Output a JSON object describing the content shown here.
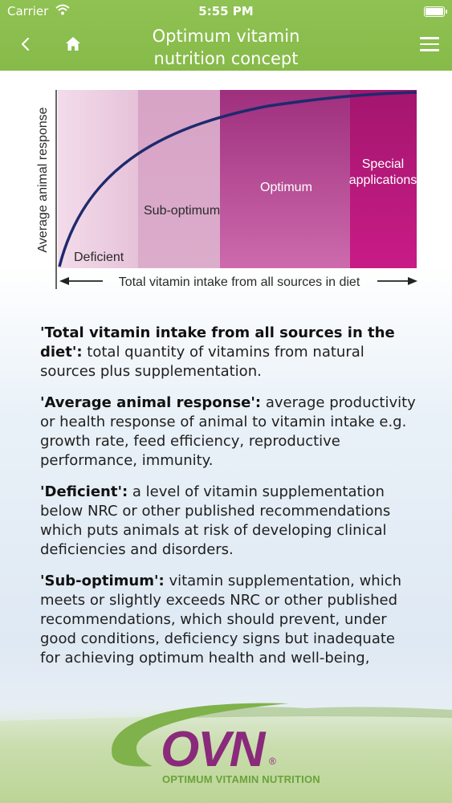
{
  "status_bar": {
    "carrier": "Carrier",
    "time": "5:55 PM"
  },
  "nav": {
    "back_icon": "chevron-left-icon",
    "home_icon": "home-icon",
    "title_line1": "Optimum vitamin",
    "title_line2": "nutrition concept",
    "menu_icon": "hamburger-menu-icon"
  },
  "colors": {
    "nav_green": "#8fc252",
    "magenta": "#c0177f",
    "curve": "#1e2a6e",
    "logo_green": "#6aa33a",
    "logo_purple": "#8a2a7a"
  },
  "chart_data": {
    "type": "area",
    "ylabel": "Average animal response",
    "xlabel": "Total vitamin intake from all sources in diet",
    "zones": [
      {
        "label": "Deficient",
        "color": "#e9c9de"
      },
      {
        "label": "Sub-optimum",
        "color": "#d9a6c8"
      },
      {
        "label": "Optimum",
        "color": "#b8509a"
      },
      {
        "label_line1": "Special",
        "label_line2": "applications",
        "color": "#c0177f"
      }
    ],
    "curve": "saturating response"
  },
  "definitions": [
    {
      "term": "'Total vitamin intake from all sources in the diet':",
      "text": " total quantity of vitamins from natural sources plus supplementation."
    },
    {
      "term": "'Average animal response':",
      "text": "  average productivity or health response of animal to vitamin intake e.g. growth rate, feed efficiency, reproductive performance, immunity."
    },
    {
      "term": "'Deficient':",
      "text": " a level of vitamin supplementation below NRC or other published recommendations which puts animals at risk of developing clinical deficiencies and disorders."
    },
    {
      "term": "'Sub-optimum':",
      "text": " vitamin supplementation, which meets or slightly exceeds NRC or other published recommendations, which should prevent, under good conditions, deficiency signs but inadequate for achieving optimum health and well-being,"
    }
  ],
  "footer": {
    "logo_text": "OVN",
    "logo_registered": "®",
    "tagline": "OPTIMUM VITAMIN NUTRITION"
  }
}
